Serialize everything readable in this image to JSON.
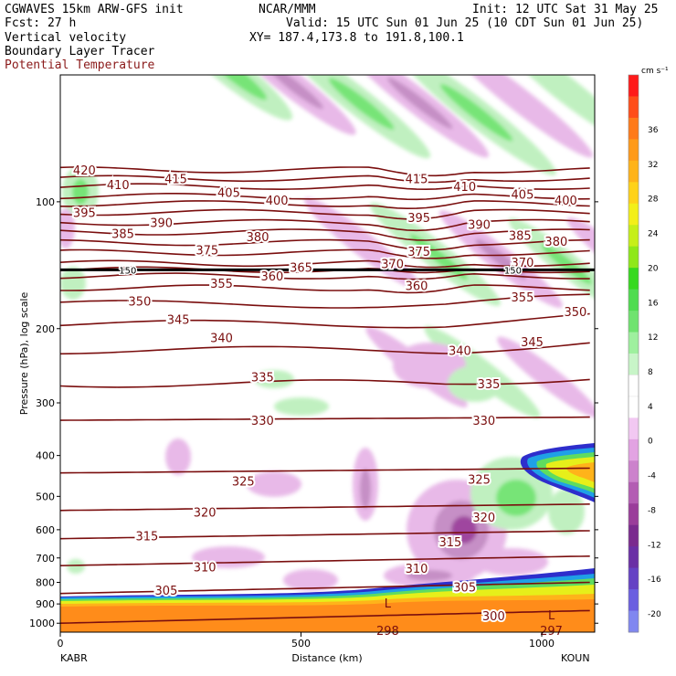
{
  "header": {
    "model": "CGWAVES 15km ARW-GFS init",
    "org": "NCAR/MMM",
    "init": "Init: 12 UTC Sat 31 May 25",
    "fcst": "Fcst:   27 h",
    "valid": "Valid: 15 UTC Sun 01 Jun 25 (10 CDT Sun 01 Jun 25)",
    "field1": "Vertical velocity",
    "field2": "Boundary Layer Tracer",
    "field3": "Potential Temperature",
    "xy": "XY= 187.4,173.8 to 191.8,100.1"
  },
  "colors": {
    "theta": "#7a0e0e",
    "field3_text": "#8b1a1a",
    "tropopause": "#000000"
  },
  "chart_data": {
    "type": "heatmap",
    "title": "",
    "xlabel": "Distance (km)",
    "ylabel": "Pressure (hPa), log scale",
    "xlim": [
      0,
      1110
    ],
    "ylim": [
      1050,
      50
    ],
    "yscale": "log",
    "x_ticks": [
      0,
      500,
      1000
    ],
    "y_ticks": [
      100,
      200,
      300,
      400,
      500,
      600,
      700,
      800,
      900,
      1000
    ],
    "endpoints": {
      "left": "KABR",
      "right": "KOUN"
    },
    "colorbar": {
      "unit": "cm s⁻¹",
      "labels": [
        36,
        32,
        28,
        24,
        20,
        16,
        12,
        8,
        4,
        0,
        -4,
        -8,
        -12,
        -16,
        -20
      ],
      "colors": [
        "#ff1a1a",
        "#ff4d1a",
        "#ff7a1a",
        "#ff9a1a",
        "#ffb31a",
        "#ffd21a",
        "#f3ef1a",
        "#c6ef1a",
        "#8fe81a",
        "#37d91f",
        "#4fdc50",
        "#6fe36f",
        "#9ef09e",
        "#c8f5c8",
        "#ffffff",
        "#ffffff",
        "#f2c8f2",
        "#e2a3e2",
        "#cc82cc",
        "#b35db3",
        "#9a3d9a",
        "#7a2a8e",
        "#6a2fa5",
        "#6542c4",
        "#6a5ee0",
        "#8087f0"
      ]
    },
    "theta_contours": [
      {
        "value": 300,
        "p": 1000
      },
      {
        "value": 305,
        "p": 850
      },
      {
        "value": 310,
        "p": 730
      },
      {
        "value": 315,
        "p": 630
      },
      {
        "value": 320,
        "p": 540
      },
      {
        "value": 325,
        "p": 440
      },
      {
        "value": 330,
        "p": 330
      },
      {
        "value": 335,
        "p": 270
      },
      {
        "value": 340,
        "p": 225
      },
      {
        "value": 345,
        "p": 195
      },
      {
        "value": 350,
        "p": 175
      },
      {
        "value": 355,
        "p": 160
      },
      {
        "value": 360,
        "p": 150
      },
      {
        "value": 365,
        "p": 145
      },
      {
        "value": 370,
        "p": 140
      },
      {
        "value": 375,
        "p": 132
      },
      {
        "value": 380,
        "p": 125
      },
      {
        "value": 385,
        "p": 118
      },
      {
        "value": 390,
        "p": 112
      },
      {
        "value": 395,
        "p": 106
      },
      {
        "value": 400,
        "p": 101
      },
      {
        "value": 405,
        "p": 97
      },
      {
        "value": 410,
        "p": 92
      },
      {
        "value": 415,
        "p": 88
      },
      {
        "value": 420,
        "p": 84
      }
    ],
    "theta_labels": [
      {
        "text": "420",
        "x": 50,
        "p": 84
      },
      {
        "text": "415",
        "x": 240,
        "p": 88
      },
      {
        "text": "410",
        "x": 120,
        "p": 91
      },
      {
        "text": "405",
        "x": 350,
        "p": 95
      },
      {
        "text": "400",
        "x": 450,
        "p": 99
      },
      {
        "text": "395",
        "x": 50,
        "p": 106
      },
      {
        "text": "390",
        "x": 210,
        "p": 112
      },
      {
        "text": "385",
        "x": 130,
        "p": 119
      },
      {
        "text": "380",
        "x": 410,
        "p": 121
      },
      {
        "text": "375",
        "x": 305,
        "p": 130
      },
      {
        "text": "360",
        "x": 440,
        "p": 150
      },
      {
        "text": "365",
        "x": 500,
        "p": 143
      },
      {
        "text": "370",
        "x": 690,
        "p": 140
      },
      {
        "text": "355",
        "x": 335,
        "p": 156
      },
      {
        "text": "350",
        "x": 165,
        "p": 172
      },
      {
        "text": "345",
        "x": 245,
        "p": 190
      },
      {
        "text": "340",
        "x": 335,
        "p": 210
      },
      {
        "text": "335",
        "x": 420,
        "p": 260
      },
      {
        "text": "330",
        "x": 420,
        "p": 330
      },
      {
        "text": "325",
        "x": 380,
        "p": 460
      },
      {
        "text": "320",
        "x": 300,
        "p": 545
      },
      {
        "text": "315",
        "x": 180,
        "p": 620
      },
      {
        "text": "310",
        "x": 300,
        "p": 735
      },
      {
        "text": "305",
        "x": 220,
        "p": 835
      },
      {
        "text": "415",
        "x": 740,
        "p": 88
      },
      {
        "text": "410",
        "x": 840,
        "p": 92
      },
      {
        "text": "405",
        "x": 960,
        "p": 96
      },
      {
        "text": "400",
        "x": 1050,
        "p": 99
      },
      {
        "text": "395",
        "x": 745,
        "p": 109
      },
      {
        "text": "390",
        "x": 870,
        "p": 113
      },
      {
        "text": "385",
        "x": 955,
        "p": 120
      },
      {
        "text": "380",
        "x": 1030,
        "p": 124
      },
      {
        "text": "375",
        "x": 745,
        "p": 131
      },
      {
        "text": "370",
        "x": 960,
        "p": 139
      },
      {
        "text": "360",
        "x": 740,
        "p": 158
      },
      {
        "text": "355",
        "x": 960,
        "p": 168
      },
      {
        "text": "350",
        "x": 1070,
        "p": 182
      },
      {
        "text": "345",
        "x": 980,
        "p": 215
      },
      {
        "text": "340",
        "x": 830,
        "p": 225
      },
      {
        "text": "335",
        "x": 890,
        "p": 270
      },
      {
        "text": "330",
        "x": 880,
        "p": 330
      },
      {
        "text": "325",
        "x": 870,
        "p": 455
      },
      {
        "text": "320",
        "x": 880,
        "p": 560
      },
      {
        "text": "315",
        "x": 810,
        "p": 640
      },
      {
        "text": "310",
        "x": 740,
        "p": 740
      },
      {
        "text": "305",
        "x": 840,
        "p": 820
      },
      {
        "text": "300",
        "x": 900,
        "p": 960
      }
    ],
    "tropopause": {
      "p": 145,
      "labels": [
        {
          "text": "150",
          "x": 140
        },
        {
          "text": "150",
          "x": 940
        }
      ]
    },
    "lows": [
      {
        "text": "L",
        "x": 680,
        "p": 900
      },
      {
        "text": "L",
        "x": 1020,
        "p": 960
      }
    ],
    "surface_values": [
      {
        "text": "298",
        "x": 680,
        "p": 1045
      },
      {
        "text": "297",
        "x": 1020,
        "p": 1045
      }
    ]
  }
}
